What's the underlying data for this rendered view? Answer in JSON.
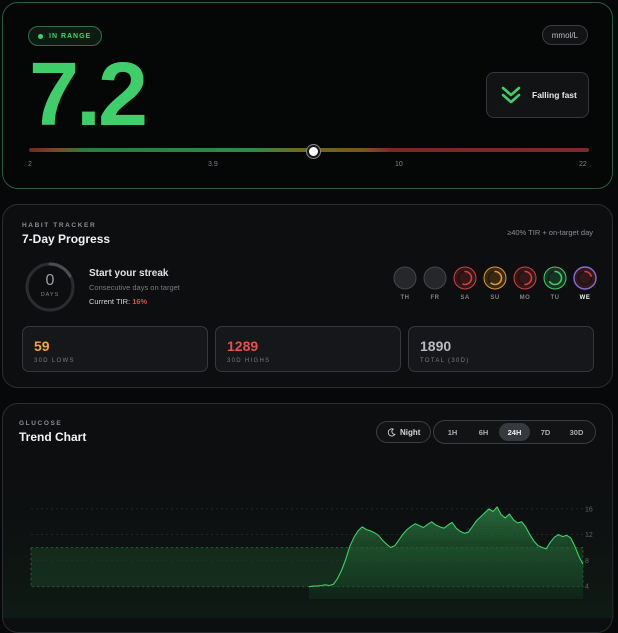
{
  "reading": {
    "status": "IN RANGE",
    "unit": "mmol/L",
    "value": "7.2",
    "trend": "Falling fast",
    "scale": {
      "min": 2,
      "max": 22,
      "current": 7.2,
      "ticks": [
        "2",
        "3.9",
        "10",
        "22"
      ]
    }
  },
  "habit": {
    "eyebrow": "HABIT TRACKER",
    "title": "7-Day Progress",
    "note": "≥40% TIR + on-target day",
    "streak": {
      "count": "0",
      "count_label": "DAYS",
      "title": "Start your streak",
      "subtitle": "Consecutive days on target",
      "tir_label": "Current TIR:",
      "tir_value": "16%"
    },
    "days": [
      {
        "label": "TH",
        "progress": 0,
        "color": "#5a5d62"
      },
      {
        "label": "FR",
        "progress": 0,
        "color": "#5a5d62"
      },
      {
        "label": "SA",
        "progress": 0.55,
        "color": "#d2413f"
      },
      {
        "label": "SU",
        "progress": 0.6,
        "color": "#e39a2c"
      },
      {
        "label": "MO",
        "progress": 0.5,
        "color": "#d2413f"
      },
      {
        "label": "TU",
        "progress": 0.65,
        "color": "#3ecf6a"
      },
      {
        "label": "WE",
        "progress": 0.2,
        "color": "#d2413f"
      }
    ],
    "stats": [
      {
        "value": "59",
        "label": "30D LOWS",
        "color": "#f0a532"
      },
      {
        "value": "1289",
        "label": "30D HIGHS",
        "color": "#e6504c"
      },
      {
        "value": "1890",
        "label": "TOTAL (30D)",
        "color": "#b8bbc0"
      }
    ]
  },
  "chart": {
    "eyebrow": "GLUCOSE",
    "title": "Trend Chart",
    "night_label": "Night",
    "ranges": [
      "1H",
      "6H",
      "24H",
      "7D",
      "30D"
    ],
    "active_range": "24H",
    "y_ticks": [
      "16",
      "12",
      "8",
      "4"
    ]
  },
  "chart_data": {
    "type": "area",
    "title": "Trend Chart",
    "y_ticks": [
      4,
      8,
      12,
      16
    ],
    "ylim": [
      2,
      18
    ],
    "target_band": [
      3.9,
      10
    ],
    "x": [
      0,
      1,
      2,
      3,
      4,
      5,
      6,
      7,
      8,
      9,
      10,
      11,
      12,
      13,
      14,
      15,
      16,
      17,
      18,
      19,
      20,
      21,
      22,
      23,
      24,
      25,
      26,
      27,
      28,
      29,
      30,
      31,
      32,
      33,
      34,
      35,
      36,
      37,
      38,
      39,
      40,
      41,
      42,
      43,
      44,
      45,
      46,
      47,
      48,
      49,
      50,
      51,
      52,
      53,
      54,
      55,
      56,
      57,
      58,
      59,
      60,
      61,
      62,
      63,
      64,
      65,
      66,
      67
    ],
    "series": [
      {
        "values": [
          3.9,
          4.0,
          4.0,
          4.1,
          4.2,
          4.1,
          4.3,
          5.2,
          6.5,
          8.2,
          10.2,
          11.6,
          12.6,
          13.2,
          12.8,
          12.6,
          12.3,
          11.9,
          11.1,
          10.5,
          10.0,
          10.3,
          11.2,
          12.1,
          12.8,
          13.3,
          13.7,
          13.4,
          13.1,
          13.6,
          14.0,
          13.5,
          13.2,
          13.0,
          13.5,
          13.9,
          13.0,
          12.5,
          12.2,
          12.4,
          13.3,
          14.2,
          14.8,
          15.4,
          16.0,
          15.6,
          16.3,
          15.1,
          14.6,
          15.2,
          14.3,
          13.8,
          14.0,
          13.2,
          12.0,
          11.0,
          10.3,
          10.0,
          9.8,
          10.8,
          11.6,
          12.0,
          11.7,
          11.9,
          11.5,
          10.2,
          8.6,
          7.4
        ]
      }
    ]
  }
}
